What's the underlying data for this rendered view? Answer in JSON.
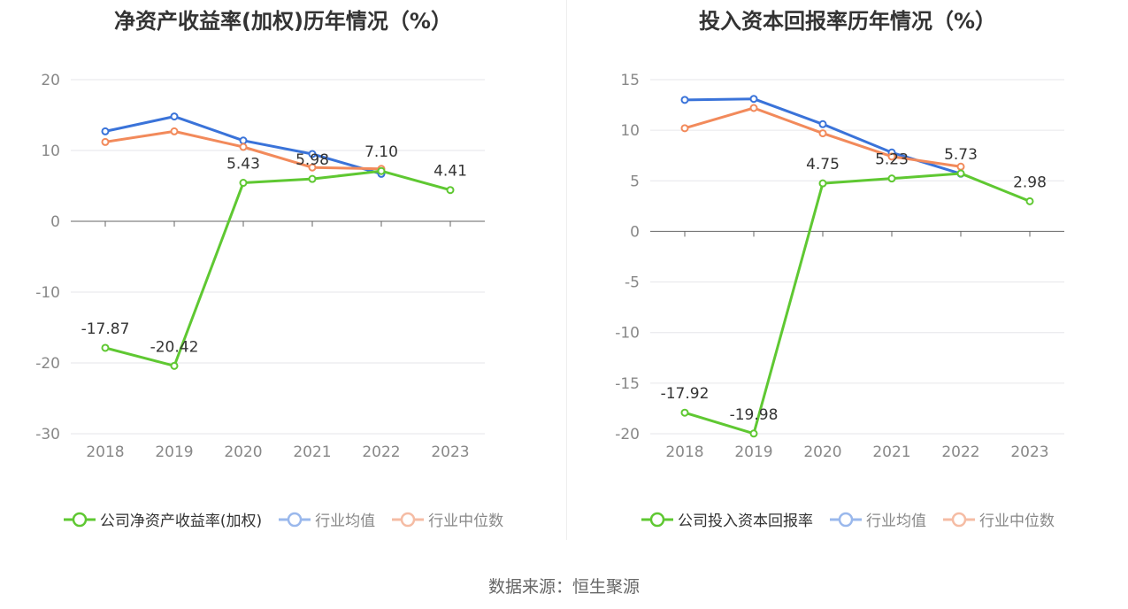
{
  "colors": {
    "company": "#5fc832",
    "industry_avg": "#3a73d9",
    "industry_median": "#f28a5b",
    "legend_avg": "#9ab8ec",
    "legend_median": "#f5bca4",
    "grid": "#e6e6ea",
    "axis": "#666666"
  },
  "source_text": "数据来源：恒生聚源",
  "chart_data": [
    {
      "type": "line",
      "title": "净资产收益率(加权)历年情况（%）",
      "categories": [
        "2018",
        "2019",
        "2020",
        "2021",
        "2022",
        "2023"
      ],
      "ylim": [
        -30,
        20
      ],
      "yticks": [
        20,
        10,
        0,
        -10,
        -20,
        -30
      ],
      "grid": true,
      "legend_position": "bottom",
      "series": [
        {
          "name": "公司净资产收益率(加权)",
          "key": "company",
          "values": [
            -17.87,
            -20.42,
            5.43,
            5.98,
            7.1,
            4.41
          ],
          "labels": [
            "-17.87",
            "-20.42",
            "5.43",
            "5.98",
            "7.10",
            "4.41"
          ]
        },
        {
          "name": "行业均值",
          "key": "industry_avg",
          "values": [
            12.7,
            14.8,
            11.4,
            9.5,
            6.7,
            null
          ]
        },
        {
          "name": "行业中位数",
          "key": "industry_median",
          "values": [
            11.2,
            12.7,
            10.5,
            7.6,
            7.4,
            null
          ]
        }
      ]
    },
    {
      "type": "line",
      "title": "投入资本回报率历年情况（%）",
      "categories": [
        "2018",
        "2019",
        "2020",
        "2021",
        "2022",
        "2023"
      ],
      "ylim": [
        -20,
        15
      ],
      "yticks": [
        15,
        10,
        5,
        0,
        -5,
        -10,
        -15,
        -20
      ],
      "grid": true,
      "legend_position": "bottom",
      "series": [
        {
          "name": "公司投入资本回报率",
          "key": "company",
          "values": [
            -17.92,
            -19.98,
            4.75,
            5.23,
            5.73,
            2.98
          ],
          "labels": [
            "-17.92",
            "-19.98",
            "4.75",
            "5.23",
            "5.73",
            "2.98"
          ]
        },
        {
          "name": "行业均值",
          "key": "industry_avg",
          "values": [
            13.0,
            13.1,
            10.6,
            7.8,
            5.7,
            null
          ]
        },
        {
          "name": "行业中位数",
          "key": "industry_median",
          "values": [
            10.2,
            12.2,
            9.7,
            7.4,
            6.4,
            null
          ]
        }
      ]
    }
  ]
}
